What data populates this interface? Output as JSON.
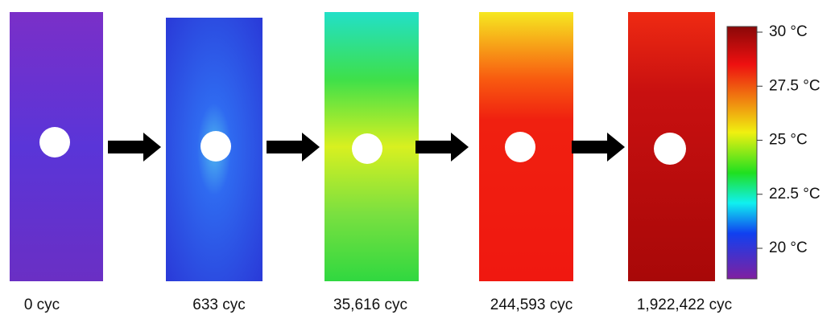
{
  "panels": [
    {
      "label": "0 cyc"
    },
    {
      "label": "633 cyc"
    },
    {
      "label": "35,616 cyc"
    },
    {
      "label": "244,593 cyc"
    },
    {
      "label": "1,922,422 cyc"
    }
  ],
  "colorbar": {
    "ticks": [
      "30 °C",
      "27.5 °C",
      "25 °C",
      "22.5 °C",
      "20 °C"
    ]
  }
}
